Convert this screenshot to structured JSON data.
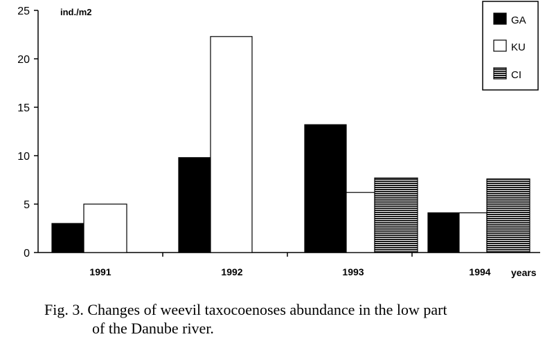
{
  "chart_data": {
    "type": "bar",
    "categories": [
      "1991",
      "1992",
      "1993",
      "1994"
    ],
    "series": [
      {
        "name": "GA",
        "values": [
          3.0,
          9.8,
          13.2,
          4.1
        ]
      },
      {
        "name": "KU",
        "values": [
          5.0,
          22.3,
          6.2,
          4.1
        ]
      },
      {
        "name": "CI",
        "values": [
          0,
          0,
          7.7,
          7.6
        ]
      }
    ],
    "ylabel": "ind./m2",
    "xlabel": "years",
    "ylim": [
      0,
      25
    ],
    "yticks": [
      "0",
      "5",
      "10",
      "15",
      "20",
      "25"
    ],
    "grid": false,
    "legend_position": "top-right"
  },
  "caption": {
    "line1": "Fig. 3. Changes of weevil taxocoenoses abundance in the low part",
    "line2": "of the Danube river."
  },
  "colors": {
    "GA": "#000000",
    "KU": "#ffffff",
    "CI_stripe": "#1a1a1a"
  }
}
